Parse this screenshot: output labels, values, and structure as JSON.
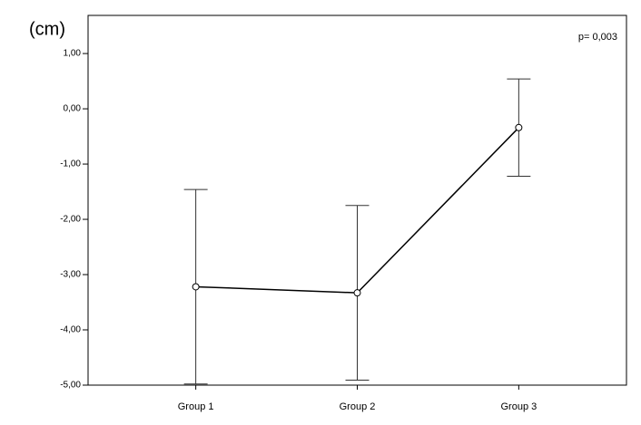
{
  "chart_data": {
    "type": "line",
    "y_label": "(cm)",
    "annotation": "p= 0,003",
    "categories": [
      "Group 1",
      "Group 2",
      "Group 3"
    ],
    "values": [
      -3.22,
      -3.33,
      -0.34
    ],
    "errors": [
      1.76,
      1.58,
      0.88
    ],
    "color": "#000000",
    "ylim": [
      -5,
      1.69
    ],
    "yticks": [
      {
        "value": 1,
        "label": "1,00"
      },
      {
        "value": 0,
        "label": "0,00"
      },
      {
        "value": -1,
        "label": "-1,00"
      },
      {
        "value": -2,
        "label": "-2,00"
      },
      {
        "value": -3,
        "label": "-3,00"
      },
      {
        "value": -4,
        "label": "-4,00"
      },
      {
        "value": -5,
        "label": "-5,00"
      }
    ],
    "grid": false
  }
}
